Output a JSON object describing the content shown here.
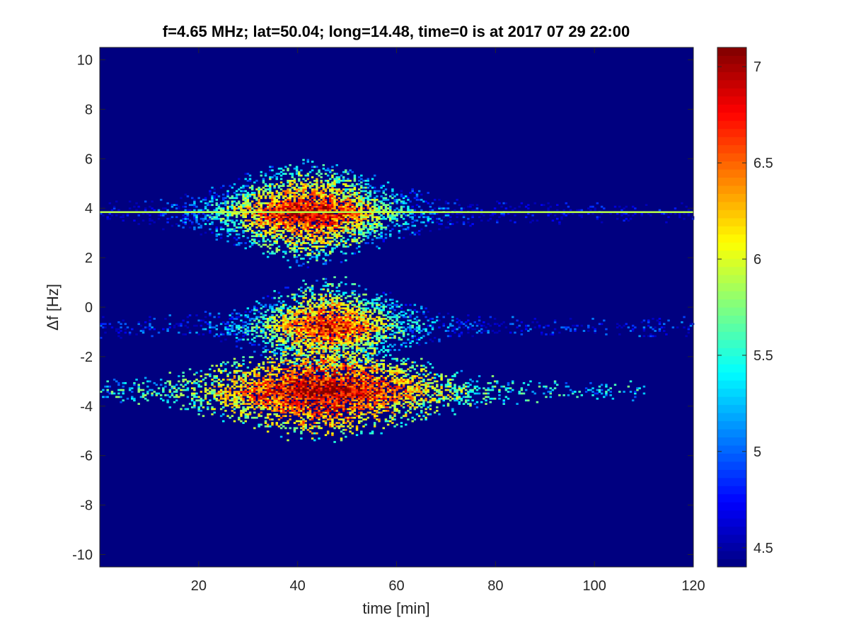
{
  "chart_data": {
    "type": "heatmap",
    "title": "f=4.65 MHz;  lat=50.04; long=14.48, time=0 is at 2017 07 29 22:00",
    "xlabel": "time [min]",
    "ylabel": "Δf [Hz]",
    "xlim": [
      0,
      120
    ],
    "ylim": [
      -10.5,
      10.5
    ],
    "xticks": [
      20,
      40,
      60,
      80,
      100,
      120
    ],
    "yticks": [
      10,
      8,
      6,
      4,
      2,
      0,
      -2,
      -4,
      -6,
      -8,
      -10
    ],
    "colorbar": {
      "colormap": "jet",
      "clim": [
        4.4,
        7.1
      ],
      "ticks": [
        7,
        6.5,
        6,
        5.5,
        5,
        4.5
      ]
    },
    "background_value": 4.4,
    "bands": [
      {
        "center_hz": 3.85,
        "t_start": 0,
        "t_end": 120,
        "peak_time": 42,
        "width_min": 20,
        "half_spread_hz": 1.4,
        "peak_value": 7.0,
        "baseline_value": 5.0
      },
      {
        "center_hz": -0.75,
        "t_start": 0,
        "t_end": 120,
        "peak_time": 46,
        "width_min": 16,
        "half_spread_hz": 1.3,
        "peak_value": 6.8,
        "baseline_value": 5.2
      },
      {
        "center_hz": -3.35,
        "t_start": 0,
        "t_end": 110,
        "peak_time": 45,
        "width_min": 24,
        "half_spread_hz": 1.3,
        "peak_value": 7.05,
        "baseline_value": 5.8
      }
    ],
    "lines": [
      {
        "freq_hz": 3.85,
        "t_start": 0,
        "t_end": 120,
        "value": 5.9
      }
    ],
    "grid": false,
    "legend": "none"
  }
}
